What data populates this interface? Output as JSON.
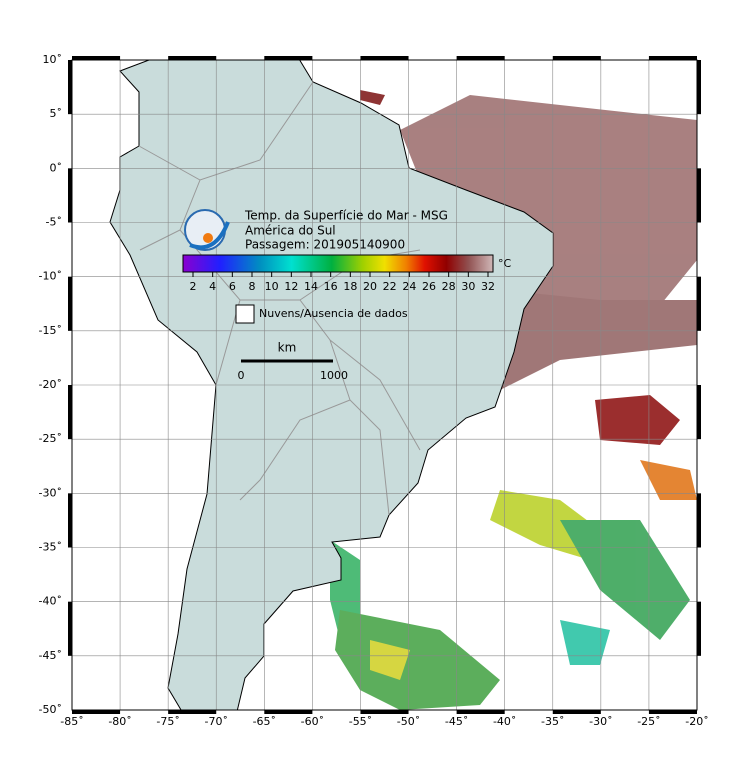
{
  "header": {
    "title": "Temp. da Superfície do Mar - MSG",
    "region": "América do Sul",
    "pass": "Passagem: 201905140900"
  },
  "colorbar": {
    "unit": "°C",
    "ticks": [
      2,
      4,
      6,
      8,
      10,
      12,
      14,
      16,
      18,
      20,
      22,
      24,
      26,
      28,
      30,
      32
    ]
  },
  "legend": {
    "label": "Nuvens/Ausencia de dados"
  },
  "scale": {
    "unit": "km",
    "labels": [
      "0",
      "1000"
    ]
  },
  "map": {
    "lon_labels": [
      "-85˚",
      "-80˚",
      "-75˚",
      "-70˚",
      "-65˚",
      "-60˚",
      "-55˚",
      "-50˚",
      "-45˚",
      "-40˚",
      "-35˚",
      "-30˚",
      "-25˚",
      "-20˚"
    ],
    "lat_labels": [
      "10˚",
      "5˚",
      "0˚",
      "-5˚",
      "-10˚",
      "-15˚",
      "-20˚",
      "-25˚",
      "-30˚",
      "-35˚",
      "-40˚",
      "-45˚",
      "-50˚"
    ]
  }
}
